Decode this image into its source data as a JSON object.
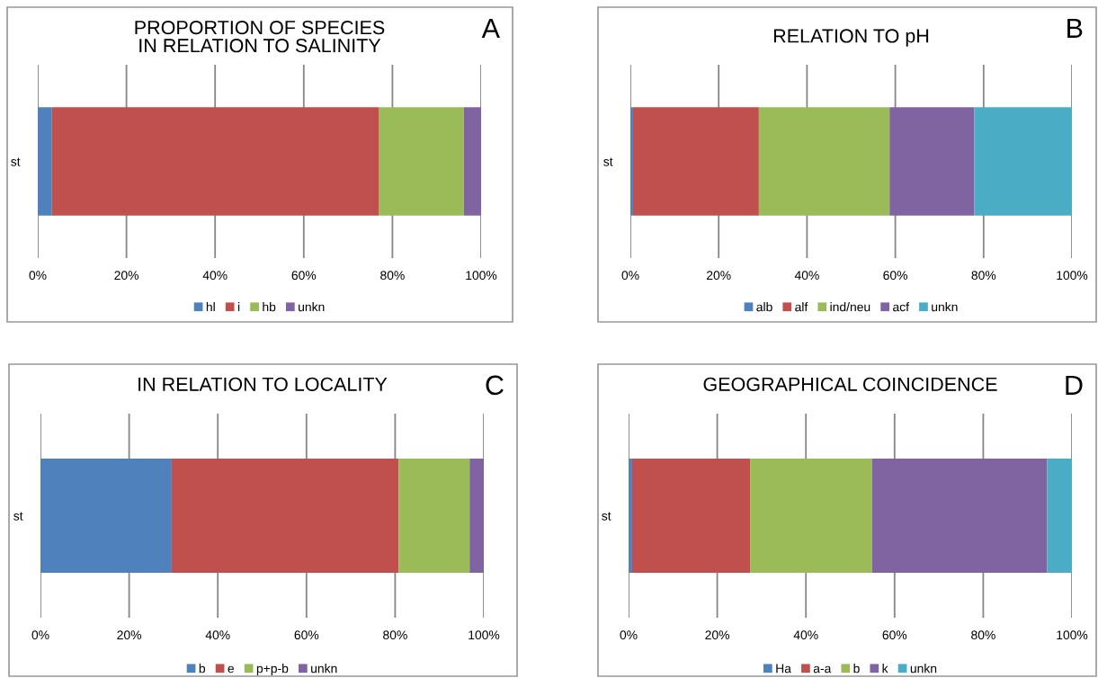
{
  "chart_data": [
    {
      "type": "bar",
      "orientation": "horizontal",
      "stacked": true,
      "title": "PROPORTION OF SPECIES\nIN RELATION TO SALINITY",
      "annotations": [
        "A"
      ],
      "categories": [
        "st"
      ],
      "series": [
        {
          "name": "hl",
          "color": "#4f81bd",
          "values": [
            3.2
          ]
        },
        {
          "name": "i",
          "color": "#c0504d",
          "values": [
            73.8
          ]
        },
        {
          "name": "hb",
          "color": "#9bbb59",
          "values": [
            19.1
          ]
        },
        {
          "name": "unkn",
          "color": "#8064a2",
          "values": [
            3.9
          ]
        }
      ],
      "xlim": [
        0,
        100
      ],
      "xticks": [
        {
          "value": 0,
          "label": "0%"
        },
        {
          "value": 20,
          "label": "20%"
        },
        {
          "value": 40,
          "label": "40%"
        },
        {
          "value": 60,
          "label": "60%"
        },
        {
          "value": 80,
          "label": "80%"
        },
        {
          "value": 100,
          "label": "100%"
        }
      ],
      "grid": "x",
      "legend": "bottom"
    },
    {
      "type": "bar",
      "orientation": "horizontal",
      "stacked": true,
      "title": "RELATION TO pH",
      "annotations": [
        "B"
      ],
      "categories": [
        "st"
      ],
      "series": [
        {
          "name": "alb",
          "color": "#4f81bd",
          "values": [
            0.6
          ]
        },
        {
          "name": "alf",
          "color": "#c0504d",
          "values": [
            28.5
          ]
        },
        {
          "name": "ind/neu",
          "color": "#9bbb59",
          "values": [
            29.6
          ]
        },
        {
          "name": "acf",
          "color": "#8064a2",
          "values": [
            19.2
          ]
        },
        {
          "name": "unkn",
          "color": "#4bacc6",
          "values": [
            22.1
          ]
        }
      ],
      "xlim": [
        0,
        100
      ],
      "xticks": [
        {
          "value": 0,
          "label": "0%"
        },
        {
          "value": 20,
          "label": "20%"
        },
        {
          "value": 40,
          "label": "40%"
        },
        {
          "value": 60,
          "label": "60%"
        },
        {
          "value": 80,
          "label": "80%"
        },
        {
          "value": 100,
          "label": "100%"
        }
      ],
      "grid": "x",
      "legend": "bottom"
    },
    {
      "type": "bar",
      "orientation": "horizontal",
      "stacked": true,
      "title": "IN RELATION TO LOCALITY",
      "annotations": [
        "C"
      ],
      "categories": [
        "st"
      ],
      "series": [
        {
          "name": "b",
          "color": "#4f81bd",
          "values": [
            29.6
          ]
        },
        {
          "name": "e",
          "color": "#c0504d",
          "values": [
            51.2
          ]
        },
        {
          "name": "p+p-b",
          "color": "#9bbb59",
          "values": [
            16.0
          ]
        },
        {
          "name": "unkn",
          "color": "#8064a2",
          "values": [
            3.2
          ]
        }
      ],
      "xlim": [
        0,
        100
      ],
      "xticks": [
        {
          "value": 0,
          "label": "0%"
        },
        {
          "value": 20,
          "label": "20%"
        },
        {
          "value": 40,
          "label": "40%"
        },
        {
          "value": 60,
          "label": "60%"
        },
        {
          "value": 80,
          "label": "80%"
        },
        {
          "value": 100,
          "label": "100%"
        }
      ],
      "grid": "x",
      "legend": "bottom"
    },
    {
      "type": "bar",
      "orientation": "horizontal",
      "stacked": true,
      "title": "GEOGRAPHICAL COINCIDENCE",
      "annotations": [
        "D"
      ],
      "categories": [
        "st"
      ],
      "series": [
        {
          "name": "Ha",
          "color": "#4f81bd",
          "values": [
            0.8
          ]
        },
        {
          "name": "a-a",
          "color": "#c0504d",
          "values": [
            26.6
          ]
        },
        {
          "name": "b",
          "color": "#9bbb59",
          "values": [
            27.5
          ]
        },
        {
          "name": "k",
          "color": "#8064a2",
          "values": [
            39.5
          ]
        },
        {
          "name": "unkn",
          "color": "#4bacc6",
          "values": [
            5.6
          ]
        }
      ],
      "xlim": [
        0,
        100
      ],
      "xticks": [
        {
          "value": 0,
          "label": "0%"
        },
        {
          "value": 20,
          "label": "20%"
        },
        {
          "value": 40,
          "label": "40%"
        },
        {
          "value": 60,
          "label": "60%"
        },
        {
          "value": 80,
          "label": "80%"
        },
        {
          "value": 100,
          "label": "100%"
        }
      ],
      "grid": "x",
      "legend": "bottom"
    }
  ]
}
